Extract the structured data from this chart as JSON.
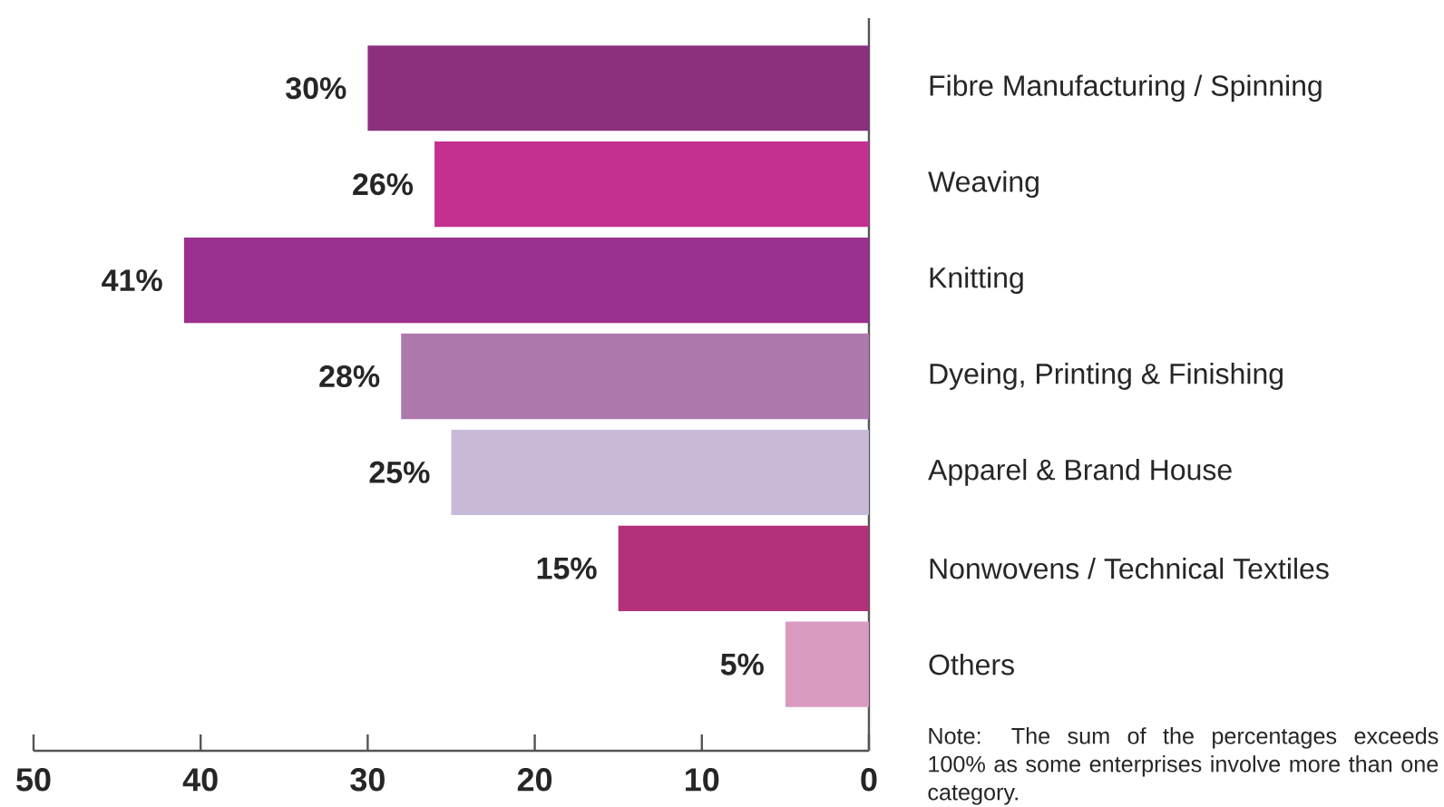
{
  "chart_data": {
    "type": "bar",
    "orientation": "horizontal",
    "categories": [
      "Fibre Manufacturing / Spinning",
      "Weaving",
      "Knitting",
      "Dyeing, Printing & Finishing",
      "Apparel & Brand House",
      "Nonwovens / Technical Textiles",
      "Others"
    ],
    "values": [
      30,
      26,
      41,
      28,
      25,
      15,
      5
    ],
    "colors": [
      "#8b2f7e",
      "#c4308f",
      "#9b3090",
      "#ad79ad",
      "#c9b9d9",
      "#b3307a",
      "#d89bbf"
    ],
    "value_labels": [
      "30%",
      "26%",
      "41%",
      "28%",
      "25%",
      "15%",
      "5%"
    ],
    "xlim": [
      50,
      0
    ],
    "xticks": [
      50,
      40,
      30,
      20,
      10,
      0
    ],
    "annotations": [
      "Note: The sum of the percentages exceeds 100% as some enterprises involve more than one category."
    ]
  }
}
